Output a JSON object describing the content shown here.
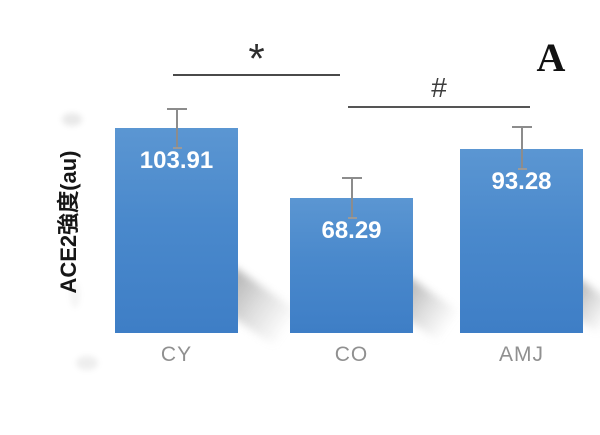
{
  "figure": {
    "panel_label": "A"
  },
  "chart_data": {
    "type": "bar",
    "title": "",
    "xlabel": "",
    "ylabel": "ACE2強度(au)",
    "categories": [
      "CY",
      "CO",
      "AMJ"
    ],
    "values": [
      103.91,
      68.29,
      93.28
    ],
    "errors_up": [
      10.2,
      10.7,
      11.7
    ],
    "ylim": [
      0,
      120
    ],
    "grid": false,
    "legend": null,
    "bar_color": "#4787CA",
    "value_label_color": "#FFFFFF",
    "annotations": [
      {
        "symbol": "*",
        "between": [
          "CY",
          "CO"
        ]
      },
      {
        "symbol": "#",
        "between": [
          "CO",
          "AMJ"
        ]
      }
    ]
  }
}
